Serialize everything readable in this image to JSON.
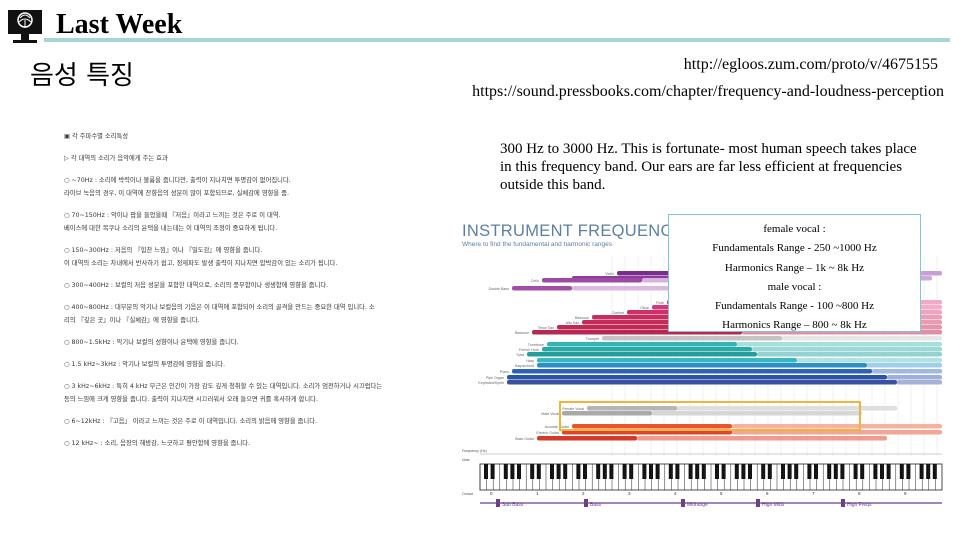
{
  "header": {
    "title": "Last Week",
    "logo_icon": "tree-monitor-icon",
    "accent_color": "#a8d4d8"
  },
  "subtitle": "음성 특징",
  "links": [
    "http://egloos.zum.com/proto/v/4675155",
    "https://sound.pressbooks.com/chapter/frequency-and-loudness-perception"
  ],
  "korean_notes": [
    "▣ 각 주파수별 소리특성",
    "▷ 각 대역의 소리가 음악에게 주는 효과",
    "○ ~70Hz : 소리에 박력이나 볼륨을 줍니다만, 출력이 지나치면 투명감이 없어집니다.",
    "라이브 녹음의 경우, 이 대역에 잔향음의 성분이 많이 포함되므로, 실체감에 영향을 줌.",
    "○ 70~150Hz : 악이나 팝을 들었을때 『저음』이라고 느끼는 것은 주로 이 대역.",
    "베이스에 대한 목쿠나 소리의 윤택을 내는데는 이 대역의 조정이 중요하게 됩니다.",
    "○ 150~300Hz : 저음의 『힘찬 느낌』이나 『밀도감』에 영향을 줍니다.",
    "이 대역의 소리는 차내에서 반사하기 쉽고, 정재파도 발생 출력이 지나치면 압박감이 있는 소리가 됩니다.",
    "○ 300~400Hz : 보컬의 저음 성분을 포함한 대역으로, 소리의 풍부함이나 생생함에 영향을 줍니다.",
    "○ 400~800Hz : 대부분의 악기나 보컬음의 기음은 이 대역에 포함되어 소리의 골격을 만드는 중요한 대역 입니다. 소",
    "리의 『깊은 곳』이나 『실체감』에 영향을 줍니다.",
    "○ 800~1.5kHz : 악기나 보컬의 성향이나 윤택에 영향을 줍니다.",
    "○ 1.5 kHz~3kHz : 악기나 보컬의 투명감에 영향을 줍니다.",
    "○ 3 kHz~6kHz : 특히 4 kHz 부근은 인간이 가장 감도 깊게 청취할 수 있는 대역입니다. 소리가 엄전하거나 시끄럽다는",
    "등의 느낌에 크게 영향을 줍니다. 출력이 지나치면 시끄러워서 오래 들으면 귀를 혹사하게 합니다.",
    "○ 6~12kHz : 『고음』 이라고 느끼는 것은 주로 이 대역입니다. 소리의 밝음에 영향을 줍니다.",
    "○ 12 kHz~ : 소리, 음장의 해방감, 느긋하고 평안함에 영향을 줍니다."
  ],
  "quote": "300 Hz to 3000 Hz. This is fortunate- most human speech takes place in this frequency band. Our ears are far less efficient at frequencies outside this band.",
  "vocal_box": {
    "lines": [
      "female vocal :",
      "Fundamentals Range - 250 ~1000 Hz",
      "Harmonics Range – 1k ~ 8k Hz",
      "male vocal :",
      "Fundamentals Range - 100 ~800 Hz",
      "Harmonics Range – 800 ~ 8k Hz"
    ]
  },
  "instrument_chart": {
    "title": "INSTRUMENT FREQUENCIES",
    "subtitle": "Where to find the fundamental and harmonic ranges",
    "row_labels": [
      "Violin",
      "Viola",
      "Cello",
      "Double Bass",
      "Flute",
      "Oboe",
      "Clarinet",
      "Bassoon",
      "Alto Sax",
      "Tenor Sax",
      "Bassoon",
      "Trumpet",
      "Trombone",
      "French Horn",
      "Tuba",
      "Harp",
      "Harpsichord",
      "Piano",
      "Pipe Organ",
      "Keyboard/Synth",
      "Female Vocal",
      "Male Vocal",
      "Acoustic Guitar",
      "Electric Guitar",
      "Bass Guitar"
    ],
    "bottom_labels": [
      "Sub Bass",
      "Bass",
      "Midrange",
      "High Mids",
      "High Freqs"
    ],
    "octaves": [
      "0",
      "1",
      "2",
      "3",
      "4",
      "5",
      "6",
      "7",
      "8",
      "9"
    ],
    "row_labels_frequency": "Frequency (Hz)",
    "row_labels_note": "Note",
    "row_labels_octave": "Octave"
  }
}
